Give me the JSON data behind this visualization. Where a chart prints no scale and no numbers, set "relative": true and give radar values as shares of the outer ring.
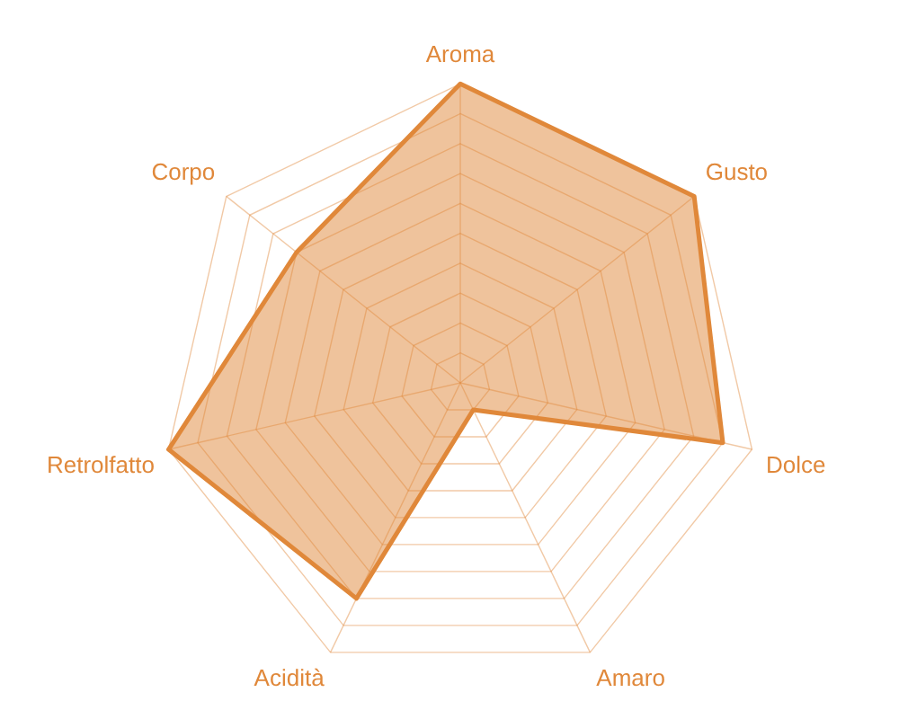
{
  "chart_data": {
    "type": "radar",
    "relative": true,
    "grid": true,
    "legend": false,
    "marker": "none",
    "categories": [
      "Aroma",
      "Gusto",
      "Dolce",
      "Amaro",
      "Acidità",
      "Retrolfatto",
      "Corpo"
    ],
    "series": [
      {
        "color": "#e0883a",
        "values": [
          1,
          1,
          0.9,
          0.1,
          0.8,
          1,
          0.7
        ]
      }
    ]
  }
}
